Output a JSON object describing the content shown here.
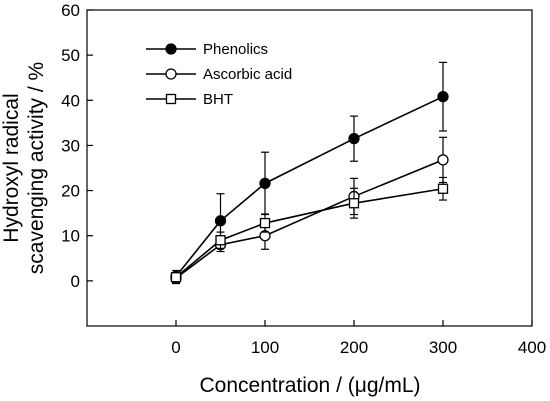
{
  "chart_data": {
    "type": "line",
    "title": "",
    "xlabel": "Concentration / (μg/mL)",
    "ylabel": [
      "Hydroxyl radical",
      "scavenging activity / %"
    ],
    "xlim": [
      -100,
      400
    ],
    "ylim": [
      -10,
      60
    ],
    "xticks": [
      0,
      100,
      200,
      300,
      400
    ],
    "yticks": [
      0,
      10,
      20,
      30,
      40,
      50,
      60
    ],
    "grid": false,
    "legend_position": "top-left",
    "series": [
      {
        "name": "Phenolics",
        "marker": "filled-circle",
        "color": "#000000",
        "x": [
          0,
          50,
          100,
          200,
          300
        ],
        "y": [
          1.0,
          13.3,
          21.6,
          31.5,
          40.8
        ],
        "err": [
          1.3,
          6.0,
          6.9,
          5.0,
          7.6
        ]
      },
      {
        "name": "Ascorbic acid",
        "marker": "open-circle",
        "color": "#000000",
        "x": [
          0,
          50,
          100,
          200,
          300
        ],
        "y": [
          0.6,
          8.0,
          10.0,
          18.7,
          26.8
        ],
        "err": [
          1.2,
          1.5,
          3.0,
          4.0,
          5.0
        ]
      },
      {
        "name": "BHT",
        "marker": "open-square",
        "color": "#000000",
        "x": [
          0,
          50,
          100,
          200,
          300
        ],
        "y": [
          0.8,
          9.0,
          12.8,
          17.2,
          20.4
        ],
        "err": [
          1.0,
          1.8,
          2.0,
          3.3,
          2.5
        ]
      }
    ]
  }
}
